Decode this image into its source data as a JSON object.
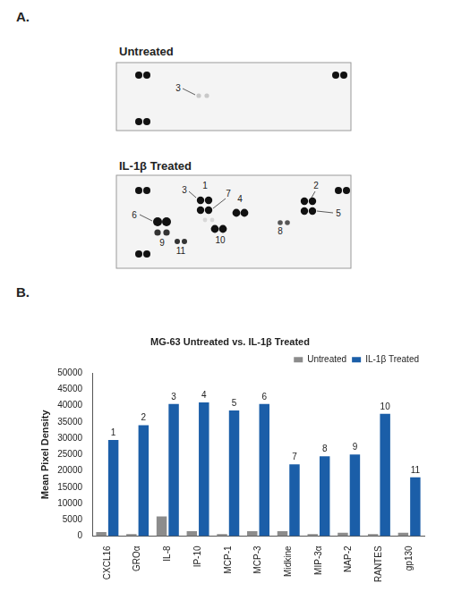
{
  "panel_a": {
    "label": "A.",
    "blots": [
      {
        "title": "Untreated",
        "spot_labels": [
          "3"
        ]
      },
      {
        "title": "IL-1β Treated",
        "spot_labels": [
          "1",
          "2",
          "3",
          "4",
          "5",
          "6",
          "7",
          "8",
          "9",
          "10",
          "11"
        ]
      }
    ]
  },
  "panel_b": {
    "label": "B."
  },
  "chart_data": {
    "type": "bar",
    "title": "MG-63 Untreated vs. IL-1β Treated",
    "y_label": "Mean Pixel Density",
    "categories": [
      "CXCL16",
      "GROα",
      "IL-8",
      "IP-10",
      "MCP-1",
      "MCP-3",
      "Midkine",
      "MIP-3α",
      "NAP-2",
      "RANTES",
      "gp130"
    ],
    "series": [
      {
        "name": "Untreated",
        "color": "#8c8c8c",
        "values": [
          1200,
          600,
          6000,
          1500,
          600,
          1500,
          1500,
          600,
          1000,
          600,
          1000
        ]
      },
      {
        "name": "IL-1β Treated",
        "color": "#1b5ea8",
        "values": [
          29500,
          34000,
          40500,
          41000,
          38500,
          40500,
          22000,
          24500,
          25000,
          37500,
          18000
        ]
      }
    ],
    "annotations": [
      "1",
      "2",
      "3",
      "4",
      "5",
      "6",
      "7",
      "8",
      "9",
      "10",
      "11"
    ],
    "ylim": [
      0,
      50000
    ],
    "yticks": [
      0,
      5000,
      10000,
      15000,
      20000,
      25000,
      30000,
      35000,
      40000,
      45000,
      50000
    ],
    "grid": false,
    "legend": "top-right"
  }
}
